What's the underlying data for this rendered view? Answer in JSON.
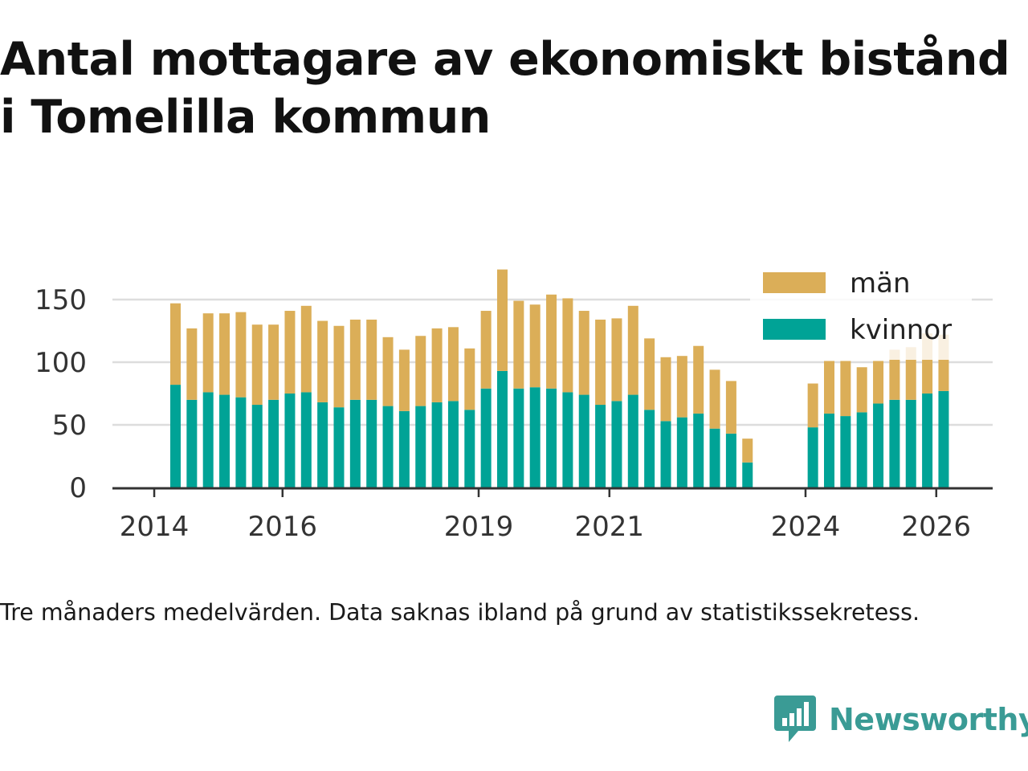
{
  "title": {
    "line1": "Antal mottagare av ekonomiskt bistånd",
    "line2": "i Tomelilla kommun"
  },
  "chart_data": {
    "type": "bar",
    "stacked": true,
    "categories": [
      "2014 K2",
      "2014 K3",
      "2014 K4",
      "2015 K1",
      "2015 K2",
      "2015 K3",
      "2015 K4",
      "2016 K1",
      "2016 K2",
      "2016 K3",
      "2016 K4",
      "2017 K1",
      "2017 K2",
      "2017 K3",
      "2017 K4",
      "2018 K1",
      "2018 K2",
      "2018 K3",
      "2018 K4",
      "2019 K1",
      "2019 K2",
      "2019 K3",
      "2019 K4",
      "2020 K1",
      "2020 K2",
      "2020 K3",
      "2020 K4",
      "2021 K1",
      "2021 K2",
      "2021 K3",
      "2021 K4",
      "2022 K1",
      "2022 K2",
      "2022 K3",
      "2022 K4",
      "2023 K1",
      "2023 K2",
      "2023 K3",
      "2023 K4",
      "2024 K1",
      "2024 K2",
      "2024 K3",
      "2024 K4",
      "2025 K1",
      "2025 K2",
      "2025 K3",
      "2025 K4",
      "2026 K1"
    ],
    "series": [
      {
        "name": "kvinnor",
        "color": "#00a396",
        "values": [
          82,
          70,
          76,
          74,
          72,
          66,
          70,
          75,
          76,
          68,
          64,
          70,
          70,
          65,
          61,
          65,
          68,
          69,
          62,
          79,
          93,
          79,
          80,
          79,
          76,
          74,
          66,
          69,
          74,
          62,
          53,
          56,
          59,
          47,
          43,
          20,
          null,
          null,
          null,
          48,
          59,
          57,
          60,
          67,
          70,
          70,
          75,
          77
        ]
      },
      {
        "name": "män",
        "color": "#dbae58",
        "values": [
          65,
          57,
          63,
          65,
          68,
          64,
          60,
          66,
          69,
          65,
          65,
          64,
          64,
          55,
          49,
          56,
          59,
          59,
          49,
          62,
          81,
          70,
          66,
          75,
          75,
          67,
          68,
          66,
          71,
          57,
          51,
          49,
          54,
          47,
          42,
          19,
          null,
          null,
          null,
          35,
          42,
          44,
          36,
          34,
          40,
          42,
          48,
          45
        ]
      }
    ],
    "x_ticks": [
      "2014",
      "2016",
      "2019",
      "2021",
      "2024",
      "2026"
    ],
    "y_ticks": [
      0,
      50,
      100,
      150
    ],
    "ylim": [
      0,
      180
    ],
    "grid": true,
    "legend_position": "top-right",
    "legend": [
      "män",
      "kvinnor"
    ],
    "highlight_last": 5
  },
  "caption": "Tre månaders medelvärden. Data saknas ibland på grund av statistikssekretess.",
  "brand": {
    "name": "Newsworthy",
    "color": "#3a9b95"
  }
}
